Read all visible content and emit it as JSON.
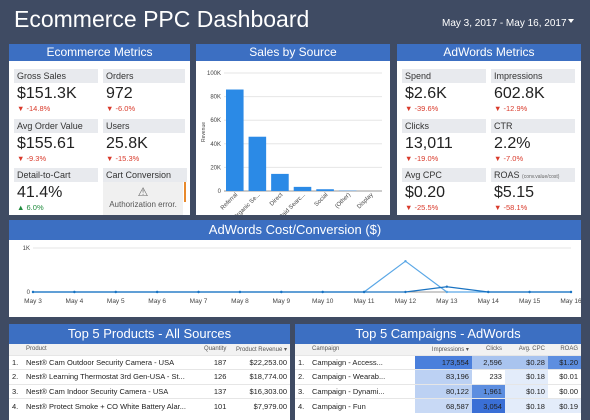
{
  "header": {
    "title": "Ecommerce PPC Dashboard",
    "date_range": "May 3, 2017 - May 16, 2017"
  },
  "ecom": {
    "title": "Ecommerce Metrics",
    "kpis": [
      {
        "label": "Gross Sales",
        "value": "$151.3K",
        "delta": "-14.8%"
      },
      {
        "label": "Orders",
        "value": "972",
        "delta": "-6.0%"
      },
      {
        "label": "Avg Order Value",
        "value": "$155.61",
        "delta": "-9.3%"
      },
      {
        "label": "Users",
        "value": "25.8K",
        "delta": "-15.3%"
      },
      {
        "label": "Detail-to-Cart",
        "value": "41.4%",
        "delta": "6.0%"
      }
    ],
    "cart": {
      "label": "Cart Conversion",
      "error": "Authorization error."
    }
  },
  "sales": {
    "title": "Sales by Source",
    "chart_data": {
      "type": "bar",
      "title": "Sales by Source",
      "ylabel": "Revenue",
      "ylim": [
        0,
        100000
      ],
      "yticks": [
        "0",
        "20K",
        "40K",
        "60K",
        "80K",
        "100K"
      ],
      "categories": [
        "Referral",
        "Organic Se...",
        "Direct",
        "Paid Searc...",
        "Social",
        "(Other)",
        "Display"
      ],
      "values": [
        86000,
        46000,
        14500,
        3500,
        1500,
        300,
        0
      ],
      "color": "#2b8ae6"
    }
  },
  "adwords": {
    "title": "AdWords Metrics",
    "kpis": [
      {
        "label": "Spend",
        "value": "$2.6K",
        "delta": "-39.6%"
      },
      {
        "label": "Impressions",
        "value": "602.8K",
        "delta": "-12.9%"
      },
      {
        "label": "Clicks",
        "value": "13,011",
        "delta": "-19.0%"
      },
      {
        "label": "CTR",
        "value": "2.2%",
        "delta": "-7.0%"
      },
      {
        "label": "Avg CPC",
        "value": "$0.20",
        "delta": "-25.5%"
      },
      {
        "label": "ROAS",
        "sub": "(conv.value/cost)",
        "value": "$5.15",
        "delta": "-58.1%"
      }
    ]
  },
  "cost": {
    "title": "AdWords Cost/Conversion ($)",
    "chart_data": {
      "type": "line",
      "title": "AdWords Cost/Conversion ($)",
      "yticks": [
        "0",
        "1K"
      ],
      "ylim": [
        0,
        1000
      ],
      "x": [
        "May 3",
        "May 4",
        "May 5",
        "May 6",
        "May 7",
        "May 8",
        "May 9",
        "May 10",
        "May 11",
        "May 12",
        "May 13",
        "May 14",
        "May 15",
        "May 16"
      ],
      "series": [
        {
          "color": "#5aa7e6",
          "values": [
            0,
            0,
            0,
            0,
            0,
            0,
            0,
            0,
            0,
            700,
            0,
            0,
            0,
            0
          ]
        },
        {
          "color": "#1a73c2",
          "values": [
            0,
            0,
            0,
            0,
            0,
            0,
            0,
            0,
            0,
            0,
            120,
            0,
            0,
            0
          ]
        }
      ]
    }
  },
  "products": {
    "title": "Top 5 Products - All Sources",
    "columns": [
      "Product",
      "Quantity",
      "Product Revenue ▾"
    ],
    "rows": [
      {
        "n": "1.",
        "product": "Nest® Cam Outdoor Security Camera - USA",
        "qty": "187",
        "rev": "$22,253.00"
      },
      {
        "n": "2.",
        "product": "Nest® Learning Thermostat 3rd Gen-USA - St...",
        "qty": "126",
        "rev": "$18,774.00"
      },
      {
        "n": "3.",
        "product": "Nest® Cam Indoor Security Camera - USA",
        "qty": "137",
        "rev": "$16,303.00"
      },
      {
        "n": "4.",
        "product": "Nest® Protect Smoke + CO White Battery Alar...",
        "qty": "101",
        "rev": "$7,979.00"
      }
    ]
  },
  "campaigns": {
    "title": "Top 5 Campaigns - AdWords",
    "columns": [
      "Campaign",
      "Impressions ▾",
      "Clicks",
      "Avg. CPC",
      "ROAG"
    ],
    "rows": [
      {
        "n": "1.",
        "campaign": "Campaign - Access...",
        "impr": "173,554",
        "clicks": "2,596",
        "cpc": "$0.28",
        "roag": "$1.20",
        "shade": [
          "#4a7fdc",
          "#a9c4ef",
          "#a9c4ef",
          "#5d8ee0"
        ]
      },
      {
        "n": "2.",
        "campaign": "Campaign - Wearab...",
        "impr": "83,196",
        "clicks": "233",
        "cpc": "$0.18",
        "roag": "$0.01",
        "shade": [
          "#bcd1f3",
          "#ffffff",
          "#e3ecfa",
          "#ffffff"
        ]
      },
      {
        "n": "3.",
        "campaign": "Campaign - Dynami...",
        "impr": "80,122",
        "clicks": "1,961",
        "cpc": "$0.10",
        "roag": "$0.00",
        "shade": [
          "#bcd1f3",
          "#5d8ee0",
          "#e3ecfa",
          "#ffffff"
        ]
      },
      {
        "n": "4.",
        "campaign": "Campaign - Fun",
        "impr": "68,587",
        "clicks": "3,054",
        "cpc": "$0.18",
        "roag": "$0.19",
        "shade": [
          "#c8d9f5",
          "#3a6fd6",
          "#e3ecfa",
          "#e3ecfa"
        ]
      }
    ]
  }
}
